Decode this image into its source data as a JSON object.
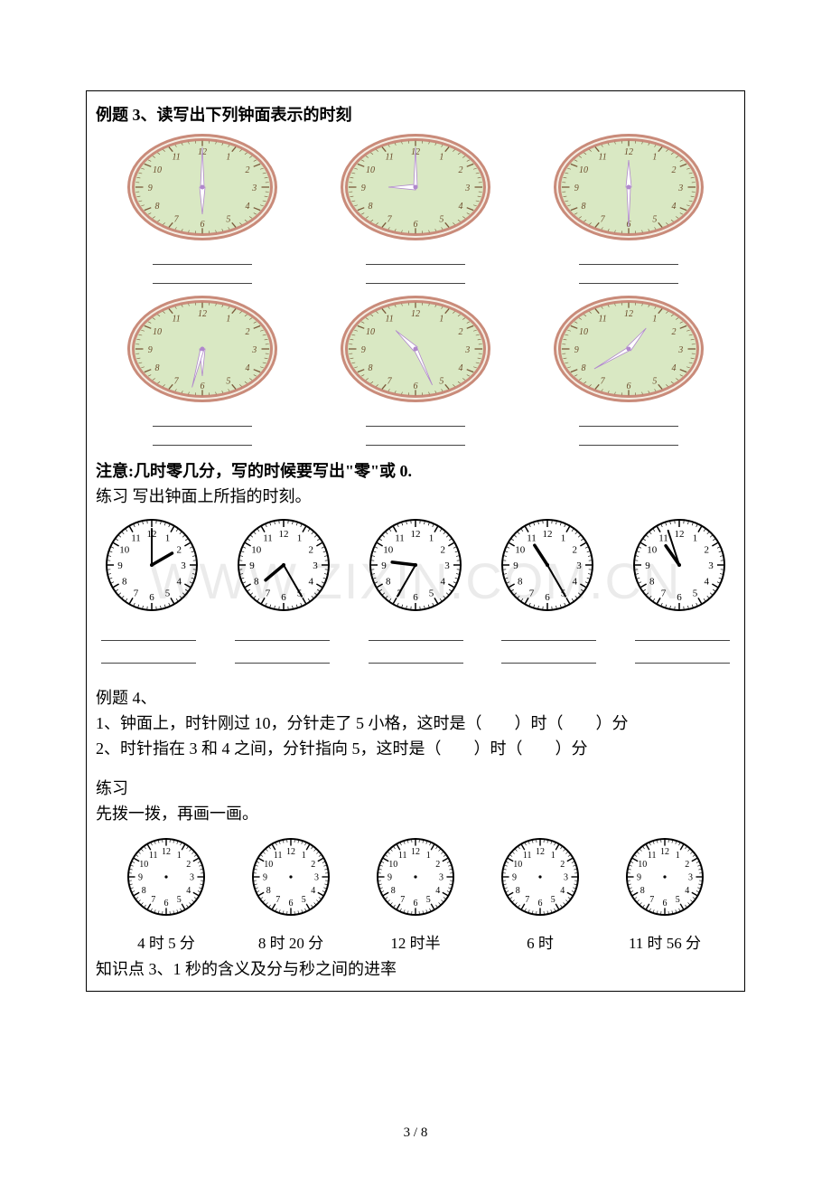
{
  "watermark": "WWW.ZIXIN.COM.CN",
  "pageNumber": "3 / 8",
  "example3": {
    "title": "例题 3、读写出下列钟面表示的时刻",
    "clocksRow1": [
      {
        "hourHand": 180,
        "minuteHand": 0,
        "face": "fancy"
      },
      {
        "hourHand": 270,
        "minuteHand": 0,
        "face": "fancy"
      },
      {
        "hourHand": 0,
        "minuteHand": 180,
        "face": "fancy"
      }
    ],
    "clocksRow2": [
      {
        "hourHand": 180,
        "minuteHand": 195,
        "face": "fancy"
      },
      {
        "hourHand": 313,
        "minuteHand": 155,
        "face": "fancy"
      },
      {
        "hourHand": 40,
        "minuteHand": 240,
        "face": "fancy"
      }
    ],
    "note": "注意:几时零几分，写的时候要写出\"零\"或 0.",
    "practice": "练习 写出钟面上所指的时刻。",
    "smallClocks": [
      {
        "hourHand": 60,
        "minuteHand": 0
      },
      {
        "hourHand": 230,
        "minuteHand": 150
      },
      {
        "hourHand": 277,
        "minuteHand": 210
      },
      {
        "hourHand": 327,
        "minuteHand": 150
      },
      {
        "hourHand": 325,
        "minuteHand": 342
      }
    ]
  },
  "example4": {
    "title": "例题 4、",
    "q1": "1、钟面上，时针刚过 10，分针走了 5 小格，这时是（　　）时（　　）分",
    "q2": "2、时针指在 3 和 4 之间，分针指向 5，这时是（　　）时（　　）分",
    "practiceTitle": "练习",
    "practiceSub": "先拨一拨，再画一画。",
    "blankClocks": [
      {
        "label": "4 时 5 分"
      },
      {
        "label": "8 时 20 分"
      },
      {
        "label": "12 时半"
      },
      {
        "label": "6 时"
      },
      {
        "label": "11 时 56 分"
      }
    ]
  },
  "point3": {
    "title": "知识点 3、1 秒的含义及分与秒之间的进率"
  },
  "fancyClock": {
    "rimOuter": "#c98b7a",
    "rimInner": "#f5ede3",
    "faceLight": "#f3f4d9",
    "faceMid": "#d9e8c3",
    "faceDark": "#b9d9b5",
    "tickColor": "#7a5a3a",
    "numColor": "#6b4a2a",
    "handFill": "#ffffff",
    "handStroke": "#b088cc"
  },
  "bwClock": {
    "stroke": "#000000",
    "fill": "#ffffff"
  }
}
